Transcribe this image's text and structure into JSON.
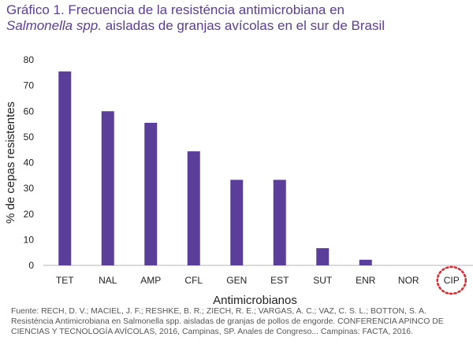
{
  "title": {
    "line1": "Gráfico 1. Frecuencia de la resisténcia antimicrobiana en",
    "line2_italic": "Salmonella spp.",
    "line2_rest": " aisladas de granjas avícolas en el sur de Brasil"
  },
  "chart_data": {
    "type": "bar",
    "categories": [
      "TET",
      "NAL",
      "AMP",
      "CFL",
      "GEN",
      "EST",
      "SUT",
      "ENR",
      "NOR",
      "CIP"
    ],
    "values": [
      75.5,
      60,
      55.5,
      44.4,
      33.3,
      33.3,
      6.7,
      2.2,
      0,
      0
    ],
    "xlabel": "Antimicrobianos",
    "ylabel": "% de cepas resistentes",
    "ylim": [
      0,
      80
    ],
    "yticks": [
      0,
      10,
      20,
      30,
      40,
      50,
      60,
      70,
      80
    ],
    "grid": false,
    "highlighted_category": "CIP",
    "bar_color": "#5b3e9a",
    "highlight_color": "#e0242b"
  },
  "source": {
    "line1": "Fuente: RECH, D. V.; MACIEL, J. F.; RESHKE, B. R.; ZIECH, R. E.; VARGAS, A. C.; VAZ, C. S. L.; BOTTON, S. A.",
    "line2": "Resisténcia Antimicrobiana en Salmonella spp.  aisladas de granjas de pollos de engorde. CONFERENCIA APINCO DE",
    "line3": "CIENCIAS Y TECNOLOGÍA AVÍCOLAS, 2016, Campinas, SP.  Anales de Congreso... Campinas: FACTA, 2016."
  }
}
